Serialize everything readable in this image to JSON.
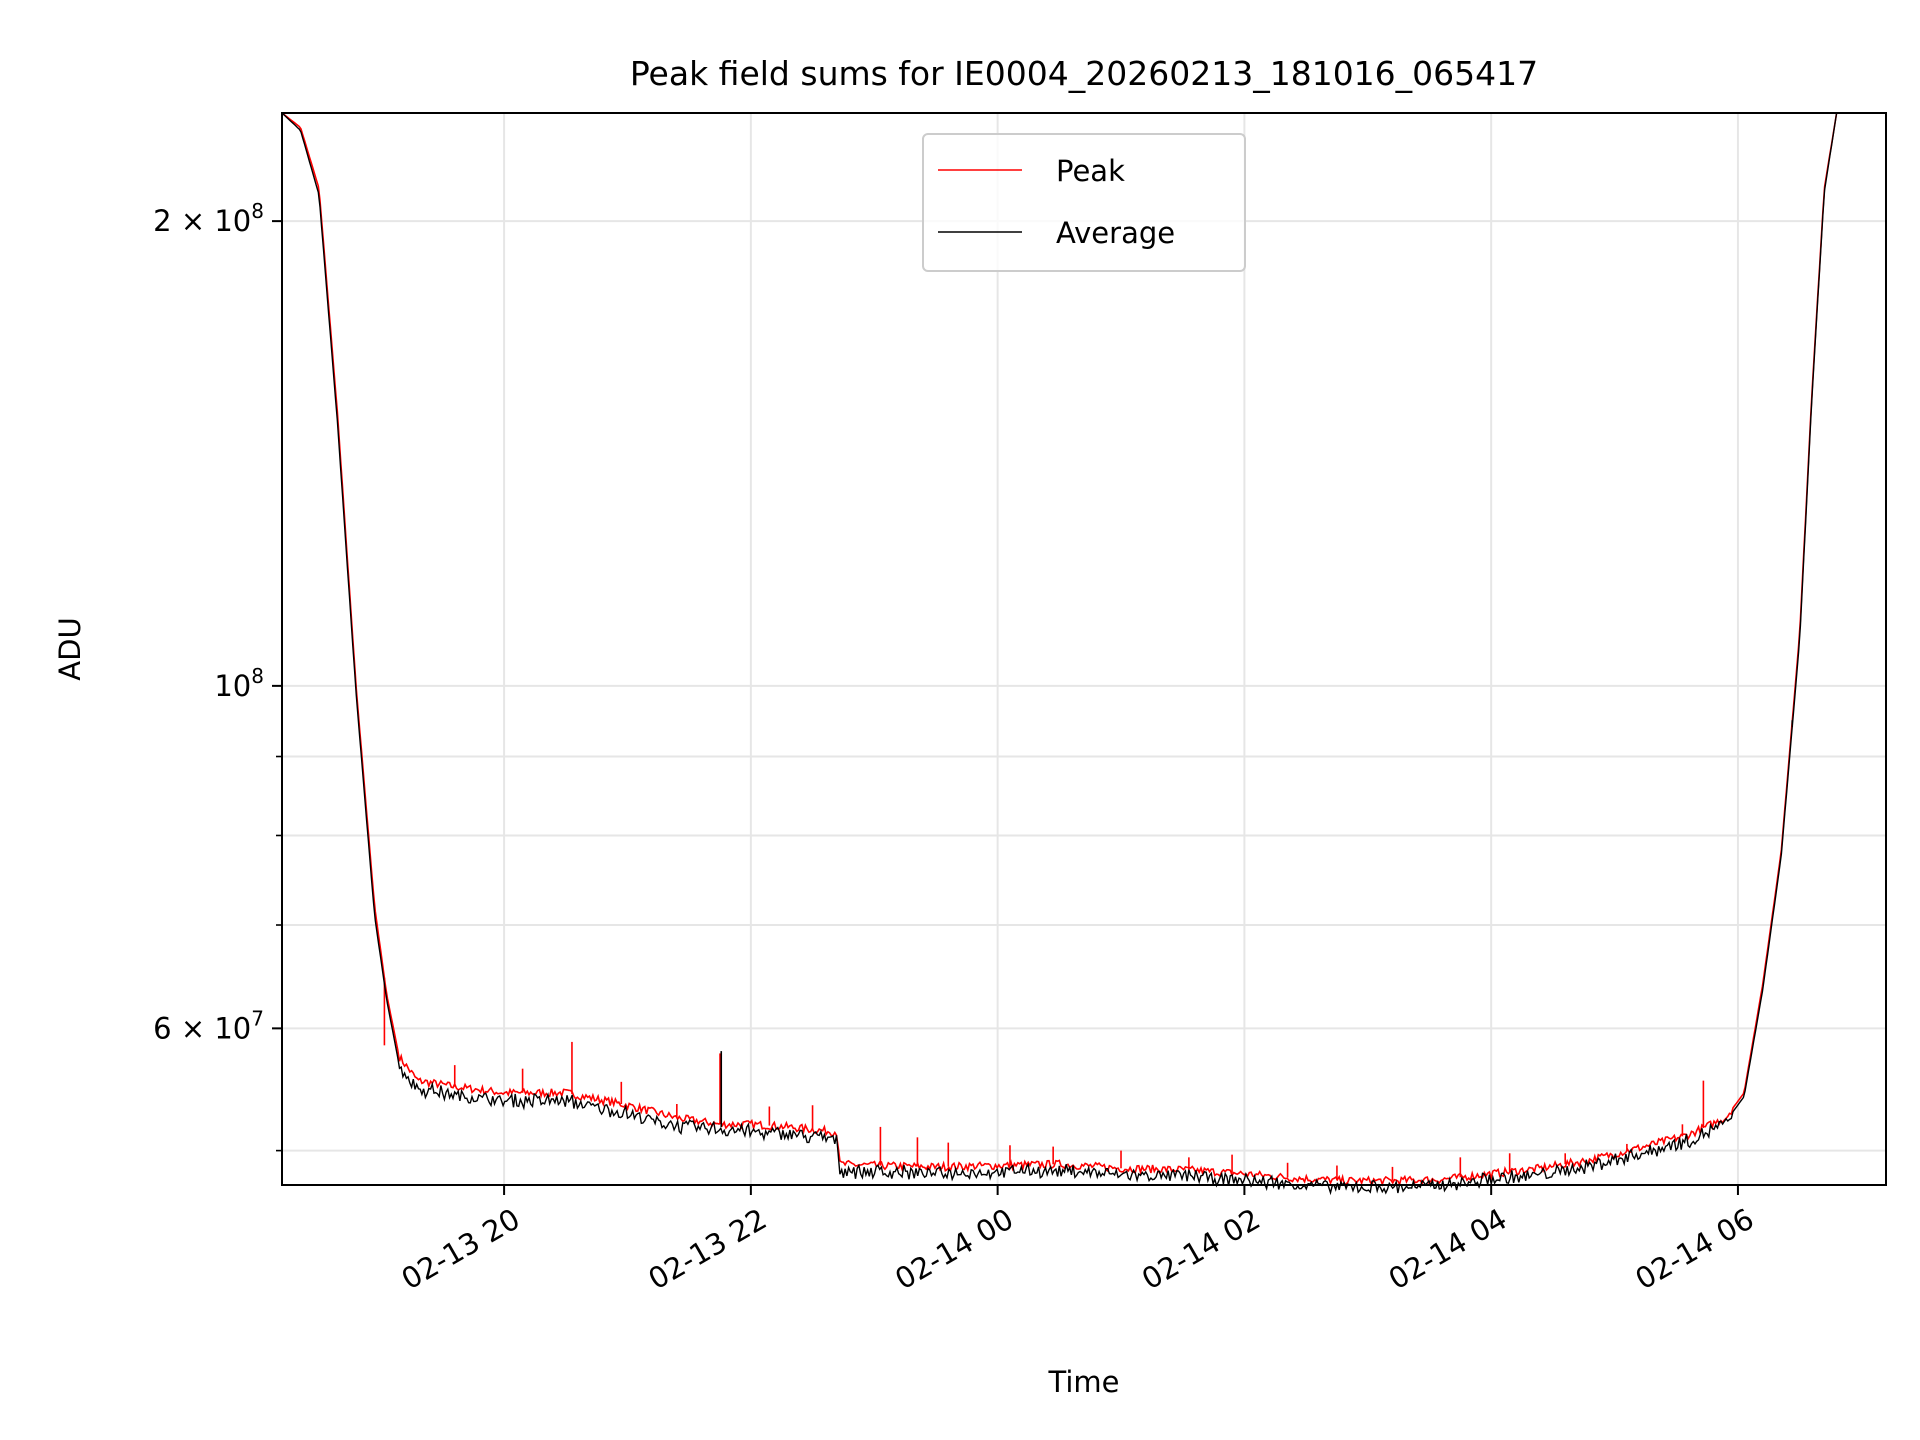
{
  "chart_data": {
    "type": "line",
    "title": "Peak field sums for IE0004_20260213_181016_065417",
    "xlabel": "Time",
    "ylabel": "ADU",
    "yscale": "log",
    "xlim": [
      18.2,
      31.2
    ],
    "ylim": [
      47500000,
      235000000
    ],
    "grid": true,
    "legend": {
      "position": "top-center",
      "entries": [
        "Peak",
        "Average"
      ]
    },
    "x_ticks": [
      {
        "value": 20,
        "label": "02-13 20"
      },
      {
        "value": 22,
        "label": "02-13 22"
      },
      {
        "value": 24,
        "label": "02-14 00"
      },
      {
        "value": 26,
        "label": "02-14 02"
      },
      {
        "value": 28,
        "label": "02-14 04"
      },
      {
        "value": 30,
        "label": "02-14 06"
      }
    ],
    "y_ticks_major": [
      {
        "value": 100000000,
        "base": "10",
        "exp": "8",
        "mant": ""
      },
      {
        "value": 200000000,
        "base": "10",
        "exp": "8",
        "mant": "2"
      },
      {
        "value": 60000000,
        "base": "10",
        "exp": "7",
        "mant": "6"
      }
    ],
    "y_ticks_minor": [
      50000000,
      70000000,
      80000000,
      90000000
    ],
    "series": [
      {
        "name": "Peak",
        "color": "#ff0000",
        "x": [
          18.2,
          18.35,
          18.5,
          18.65,
          18.8,
          18.95,
          19.05,
          19.15,
          19.3,
          19.6,
          20.0,
          20.5,
          21.0,
          21.4,
          21.75,
          22.0,
          22.3,
          22.7,
          22.72,
          23.0,
          23.5,
          24.0,
          24.5,
          25.0,
          25.5,
          26.0,
          26.4,
          26.8,
          27.2,
          27.6,
          28.0,
          28.4,
          28.8,
          29.2,
          29.6,
          29.9,
          30.05,
          30.2,
          30.35,
          30.5,
          30.6,
          30.7,
          30.8
        ],
        "y": [
          235000000,
          230000000,
          210000000,
          150000000,
          100000000,
          72000000,
          63000000,
          57500000,
          55500000,
          55000000,
          54500000,
          54500000,
          53500000,
          52500000,
          52000000,
          52000000,
          51800000,
          51400000,
          49000000,
          48900000,
          48800000,
          48900000,
          49000000,
          48700000,
          48600000,
          48300000,
          48000000,
          47800000,
          47800000,
          47900000,
          48300000,
          48700000,
          49300000,
          50200000,
          51200000,
          52500000,
          54500000,
          64000000,
          78000000,
          108000000,
          155000000,
          210000000,
          235000000
        ],
        "spikes": [
          {
            "x": 19.03,
            "y": 58500000
          },
          {
            "x": 19.6,
            "y": 56800000
          },
          {
            "x": 20.15,
            "y": 56500000
          },
          {
            "x": 20.55,
            "y": 58800000
          },
          {
            "x": 20.95,
            "y": 55400000
          },
          {
            "x": 21.4,
            "y": 53600000
          },
          {
            "x": 21.75,
            "y": 57800000
          },
          {
            "x": 22.15,
            "y": 53400000
          },
          {
            "x": 22.5,
            "y": 53500000
          },
          {
            "x": 23.05,
            "y": 51800000
          },
          {
            "x": 23.35,
            "y": 51000000
          },
          {
            "x": 23.6,
            "y": 50600000
          },
          {
            "x": 24.1,
            "y": 50400000
          },
          {
            "x": 24.45,
            "y": 50300000
          },
          {
            "x": 25.0,
            "y": 50000000
          },
          {
            "x": 25.55,
            "y": 49500000
          },
          {
            "x": 25.9,
            "y": 49700000
          },
          {
            "x": 26.35,
            "y": 49100000
          },
          {
            "x": 26.75,
            "y": 48900000
          },
          {
            "x": 27.2,
            "y": 48800000
          },
          {
            "x": 27.75,
            "y": 49500000
          },
          {
            "x": 28.15,
            "y": 49800000
          },
          {
            "x": 28.6,
            "y": 49800000
          },
          {
            "x": 29.1,
            "y": 50500000
          },
          {
            "x": 29.55,
            "y": 52000000
          },
          {
            "x": 29.72,
            "y": 55500000
          }
        ]
      },
      {
        "name": "Average",
        "color": "#000000",
        "x": [
          18.2,
          18.35,
          18.5,
          18.65,
          18.8,
          18.95,
          19.05,
          19.15,
          19.3,
          19.6,
          20.0,
          20.5,
          21.0,
          21.4,
          21.75,
          22.0,
          22.3,
          22.7,
          22.72,
          23.0,
          23.5,
          24.0,
          24.5,
          25.0,
          25.5,
          26.0,
          26.4,
          26.8,
          27.2,
          27.6,
          28.0,
          28.4,
          28.8,
          29.2,
          29.6,
          29.9,
          30.05,
          30.2,
          30.35,
          30.5,
          30.6,
          30.7,
          30.8
        ],
        "y": [
          235000000,
          229000000,
          208000000,
          148000000,
          99000000,
          71000000,
          62500000,
          56800000,
          55000000,
          54500000,
          54000000,
          54000000,
          53000000,
          52000000,
          51800000,
          51600000,
          51400000,
          51000000,
          48700000,
          48600000,
          48500000,
          48600000,
          48700000,
          48400000,
          48300000,
          48000000,
          47700000,
          47500000,
          47500000,
          47600000,
          48000000,
          48400000,
          49000000,
          49900000,
          50900000,
          52200000,
          54200000,
          63500000,
          77500000,
          107000000,
          154000000,
          209000000,
          235000000
        ],
        "spikes": [
          {
            "x": 21.76,
            "y": 58000000
          },
          {
            "x": 30.44,
            "y": 95000000
          }
        ]
      }
    ]
  }
}
